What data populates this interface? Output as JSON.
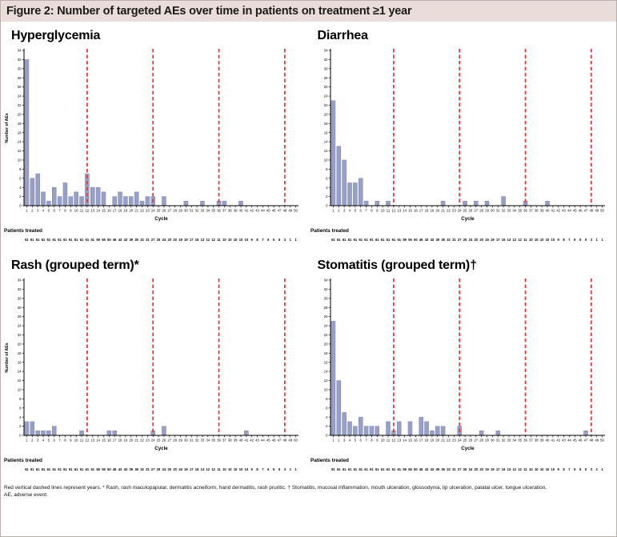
{
  "figure": {
    "title": "Figure 2: Number of targeted AEs over time in patients on treatment ≥1 year",
    "footnote_line1": "Red vertical dashed lines represent years. * Rash, rash maculopapular, dermatitis acneiform, hand dermatitis, rash pruritic. † Stomatitis, mucosal inflammation, mouth ulceration, glossodynia, lip ulceration, palatal ulcer, tongue ulceration.",
    "footnote_line2": "AE, adverse event."
  },
  "colors": {
    "bar_fill": "#99a0c7",
    "bar_border": "#7a81b3",
    "year_line": "#e63434",
    "axis": "#000000",
    "header_bg": "#e9dcd9"
  },
  "axes": {
    "x_label": "Cycle",
    "y_label": "Number of AEs",
    "y_min": 0,
    "y_max": 34,
    "y_tick_step": 2,
    "x_min": 1,
    "x_max": 50,
    "year_lines_at_cycles": [
      12,
      24,
      36,
      48
    ]
  },
  "patients_treated_label": "Patients treated",
  "patients_treated": [
    61,
    61,
    61,
    61,
    61,
    61,
    61,
    61,
    61,
    61,
    61,
    61,
    61,
    59,
    55,
    50,
    46,
    43,
    43,
    39,
    36,
    32,
    31,
    27,
    25,
    24,
    20,
    20,
    19,
    19,
    17,
    16,
    13,
    12,
    12,
    11,
    10,
    10,
    10,
    10,
    10,
    9,
    8,
    7,
    6,
    5,
    5,
    3,
    1,
    1
  ],
  "chart_data": [
    {
      "type": "bar",
      "title": "Hyperglycemia",
      "xlabel": "Cycle",
      "ylabel": "Number of AEs",
      "ylim": [
        0,
        34
      ],
      "categories": [
        1,
        2,
        3,
        4,
        5,
        6,
        7,
        8,
        9,
        10,
        11,
        12,
        13,
        14,
        15,
        16,
        17,
        18,
        19,
        20,
        21,
        22,
        23,
        24,
        25,
        26,
        27,
        28,
        29,
        30,
        31,
        32,
        33,
        34,
        35,
        36,
        37,
        38,
        39,
        40,
        41,
        42,
        43,
        44,
        45,
        46,
        47,
        48,
        49,
        50
      ],
      "values": [
        32,
        6,
        7,
        3,
        1,
        4,
        2,
        5,
        2,
        3,
        2,
        7,
        4,
        4,
        3,
        0,
        2,
        3,
        2,
        2,
        3,
        1,
        2,
        2,
        0,
        2,
        0,
        0,
        0,
        1,
        0,
        0,
        1,
        0,
        0,
        1,
        1,
        0,
        0,
        1,
        0,
        0,
        0,
        0,
        0,
        0,
        0,
        0,
        0,
        0
      ]
    },
    {
      "type": "bar",
      "title": "Diarrhea",
      "xlabel": "Cycle",
      "ylabel": "Number of AEs",
      "ylim": [
        0,
        34
      ],
      "categories": [
        1,
        2,
        3,
        4,
        5,
        6,
        7,
        8,
        9,
        10,
        11,
        12,
        13,
        14,
        15,
        16,
        17,
        18,
        19,
        20,
        21,
        22,
        23,
        24,
        25,
        26,
        27,
        28,
        29,
        30,
        31,
        32,
        33,
        34,
        35,
        36,
        37,
        38,
        39,
        40,
        41,
        42,
        43,
        44,
        45,
        46,
        47,
        48,
        49,
        50
      ],
      "values": [
        23,
        13,
        10,
        5,
        5,
        6,
        1,
        0,
        1,
        0,
        1,
        0,
        0,
        0,
        0,
        0,
        0,
        0,
        0,
        0,
        1,
        0,
        0,
        0,
        1,
        0,
        1,
        0,
        1,
        0,
        0,
        2,
        0,
        0,
        0,
        1,
        0,
        0,
        0,
        1,
        0,
        0,
        0,
        0,
        0,
        0,
        0,
        0,
        0,
        0
      ]
    },
    {
      "type": "bar",
      "title": "Rash (grouped term)*",
      "xlabel": "Cycle",
      "ylabel": "Number of AEs",
      "ylim": [
        0,
        34
      ],
      "categories": [
        1,
        2,
        3,
        4,
        5,
        6,
        7,
        8,
        9,
        10,
        11,
        12,
        13,
        14,
        15,
        16,
        17,
        18,
        19,
        20,
        21,
        22,
        23,
        24,
        25,
        26,
        27,
        28,
        29,
        30,
        31,
        32,
        33,
        34,
        35,
        36,
        37,
        38,
        39,
        40,
        41,
        42,
        43,
        44,
        45,
        46,
        47,
        48,
        49,
        50
      ],
      "values": [
        3,
        3,
        1,
        1,
        1,
        2,
        0,
        0,
        0,
        0,
        1,
        0,
        0,
        0,
        0,
        1,
        1,
        0,
        0,
        0,
        0,
        0,
        0,
        1,
        0,
        2,
        0,
        0,
        0,
        0,
        0,
        0,
        0,
        0,
        0,
        0,
        0,
        0,
        0,
        0,
        1,
        0,
        0,
        0,
        0,
        0,
        0,
        0,
        0,
        0
      ]
    },
    {
      "type": "bar",
      "title": "Stomatitis (grouped term)†",
      "xlabel": "Cycle",
      "ylabel": "Number of AEs",
      "ylim": [
        0,
        34
      ],
      "categories": [
        1,
        2,
        3,
        4,
        5,
        6,
        7,
        8,
        9,
        10,
        11,
        12,
        13,
        14,
        15,
        16,
        17,
        18,
        19,
        20,
        21,
        22,
        23,
        24,
        25,
        26,
        27,
        28,
        29,
        30,
        31,
        32,
        33,
        34,
        35,
        36,
        37,
        38,
        39,
        40,
        41,
        42,
        43,
        44,
        45,
        46,
        47,
        48,
        49,
        50
      ],
      "values": [
        25,
        12,
        5,
        3,
        2,
        4,
        2,
        2,
        2,
        0,
        3,
        1,
        3,
        0,
        3,
        0,
        4,
        3,
        1,
        2,
        2,
        0,
        0,
        2,
        0,
        0,
        0,
        1,
        0,
        0,
        1,
        0,
        0,
        0,
        0,
        0,
        0,
        0,
        0,
        0,
        0,
        0,
        0,
        0,
        0,
        0,
        1,
        0,
        0,
        0
      ]
    }
  ]
}
